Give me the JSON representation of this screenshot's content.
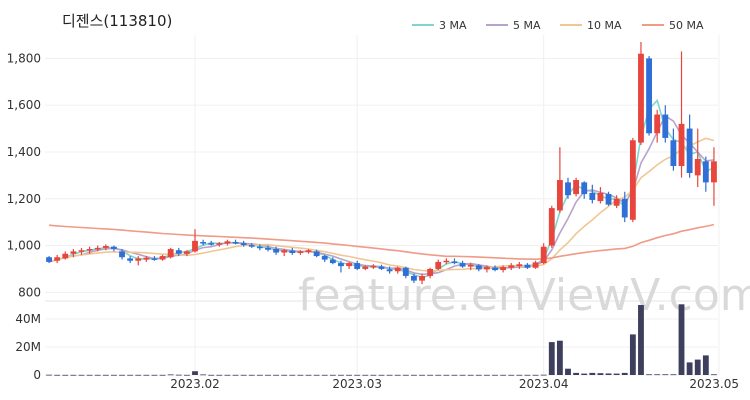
{
  "chart_data": {
    "type": "candlestick",
    "title": "디젠스(113810)",
    "watermark": "feature.enViewV.com",
    "x_labels": [
      "2023.02",
      "2023.03",
      "2023.04",
      "2023.05"
    ],
    "price_axis": {
      "ticks": [
        800,
        1000,
        1200,
        1400,
        1600,
        1800
      ],
      "tick_labels": [
        "800",
        "1,000",
        "1,200",
        "1,400",
        "1,600",
        "1,800"
      ],
      "ylim": [
        780,
        1900
      ]
    },
    "volume_axis": {
      "ticks": [
        0,
        20,
        40
      ],
      "tick_labels": [
        "0",
        "20M",
        "40M"
      ],
      "ylim": [
        0,
        50
      ],
      "unit": "M"
    },
    "legend": [
      {
        "name": "3 MA",
        "color": "#7fd6cf"
      },
      {
        "name": "5 MA",
        "color": "#b9a3cc"
      },
      {
        "name": "10 MA",
        "color": "#f0c792"
      },
      {
        "name": "50 MA",
        "color": "#ef9b86"
      }
    ],
    "colors": {
      "up": "#e8453c",
      "down": "#2f6fd6",
      "volume": "#3d3f5c",
      "grid": "#f0f0f0"
    },
    "candles": [
      [
        950,
        955,
        925,
        930
      ],
      [
        935,
        960,
        925,
        950
      ],
      [
        945,
        975,
        940,
        965
      ],
      [
        965,
        985,
        950,
        975
      ],
      [
        975,
        990,
        960,
        980
      ],
      [
        980,
        995,
        965,
        985
      ],
      [
        985,
        1000,
        975,
        990
      ],
      [
        990,
        1005,
        980,
        998
      ],
      [
        995,
        1000,
        975,
        985
      ],
      [
        975,
        985,
        940,
        950
      ],
      [
        945,
        955,
        925,
        935
      ],
      [
        935,
        955,
        915,
        945
      ],
      [
        940,
        955,
        930,
        948
      ],
      [
        945,
        955,
        935,
        940
      ],
      [
        940,
        960,
        935,
        955
      ],
      [
        950,
        990,
        945,
        985
      ],
      [
        980,
        990,
        955,
        965
      ],
      [
        965,
        980,
        955,
        975
      ],
      [
        975,
        1070,
        970,
        1020
      ],
      [
        1015,
        1025,
        1000,
        1010
      ],
      [
        1010,
        1020,
        1000,
        1005
      ],
      [
        1005,
        1015,
        995,
        1010
      ],
      [
        1008,
        1025,
        1000,
        1018
      ],
      [
        1015,
        1025,
        1005,
        1010
      ],
      [
        1010,
        1020,
        995,
        1002
      ],
      [
        1002,
        1010,
        990,
        995
      ],
      [
        995,
        1005,
        980,
        990
      ],
      [
        990,
        1000,
        975,
        982
      ],
      [
        985,
        995,
        960,
        970
      ],
      [
        970,
        985,
        955,
        980
      ],
      [
        978,
        990,
        960,
        968
      ],
      [
        968,
        980,
        960,
        975
      ],
      [
        972,
        985,
        965,
        980
      ],
      [
        975,
        982,
        950,
        955
      ],
      [
        955,
        960,
        930,
        940
      ],
      [
        940,
        950,
        920,
        925
      ],
      [
        925,
        935,
        885,
        912
      ],
      [
        912,
        930,
        900,
        925
      ],
      [
        925,
        935,
        895,
        900
      ],
      [
        900,
        915,
        895,
        910
      ],
      [
        910,
        920,
        900,
        913
      ],
      [
        910,
        918,
        895,
        900
      ],
      [
        898,
        910,
        880,
        890
      ],
      [
        890,
        910,
        880,
        905
      ],
      [
        905,
        910,
        860,
        870
      ],
      [
        870,
        880,
        840,
        850
      ],
      [
        850,
        880,
        835,
        870
      ],
      [
        870,
        905,
        860,
        900
      ],
      [
        900,
        940,
        895,
        930
      ],
      [
        930,
        945,
        920,
        935
      ],
      [
        932,
        945,
        920,
        925
      ],
      [
        925,
        935,
        905,
        910
      ],
      [
        910,
        925,
        895,
        918
      ],
      [
        915,
        920,
        890,
        898
      ],
      [
        898,
        915,
        885,
        908
      ],
      [
        906,
        915,
        890,
        895
      ],
      [
        895,
        915,
        885,
        908
      ],
      [
        905,
        925,
        895,
        915
      ],
      [
        912,
        930,
        900,
        920
      ],
      [
        918,
        925,
        900,
        905
      ],
      [
        905,
        935,
        900,
        928
      ],
      [
        925,
        1010,
        920,
        995
      ],
      [
        1000,
        1170,
        990,
        1160
      ],
      [
        1150,
        1420,
        1140,
        1280
      ],
      [
        1270,
        1290,
        1200,
        1215
      ],
      [
        1220,
        1290,
        1210,
        1280
      ],
      [
        1270,
        1275,
        1200,
        1220
      ],
      [
        1225,
        1260,
        1180,
        1195
      ],
      [
        1190,
        1250,
        1180,
        1225
      ],
      [
        1220,
        1230,
        1170,
        1175
      ],
      [
        1170,
        1215,
        1160,
        1200
      ],
      [
        1200,
        1230,
        1100,
        1120
      ],
      [
        1110,
        1460,
        1100,
        1450
      ],
      [
        1440,
        1870,
        1430,
        1820
      ],
      [
        1800,
        1810,
        1470,
        1480
      ],
      [
        1480,
        1580,
        1440,
        1560
      ],
      [
        1560,
        1600,
        1440,
        1460
      ],
      [
        1450,
        1500,
        1320,
        1340
      ],
      [
        1340,
        1830,
        1290,
        1520
      ],
      [
        1500,
        1560,
        1290,
        1310
      ],
      [
        1300,
        1500,
        1250,
        1370
      ],
      [
        1360,
        1380,
        1230,
        1270
      ],
      [
        1270,
        1420,
        1170,
        1360
      ]
    ],
    "volume": [
      0.2,
      0.1,
      0.1,
      0.1,
      0.1,
      0.1,
      0.1,
      0.1,
      0.1,
      0.1,
      0.1,
      0.1,
      0.1,
      0.1,
      0.1,
      0.4,
      0.2,
      0.1,
      2.7,
      0.4,
      0.1,
      0.1,
      0.1,
      0.1,
      0.1,
      0.1,
      0.1,
      0.1,
      0.1,
      0.1,
      0.1,
      0.1,
      0.1,
      0.1,
      0.1,
      0.1,
      0.1,
      0.1,
      0.1,
      0.1,
      0.1,
      0.1,
      0.1,
      0.1,
      0.1,
      0.1,
      0.1,
      0.1,
      0.1,
      0.1,
      0.1,
      0.1,
      0.1,
      0.1,
      0.1,
      0.1,
      0.1,
      0.1,
      0.1,
      0.1,
      0.1,
      0.2,
      23.5,
      24.5,
      4.5,
      1.5,
      1.0,
      1.5,
      1.3,
      1.1,
      1.0,
      1.5,
      29.0,
      50.0,
      0.5,
      0.5,
      0.5,
      0.5,
      50.5,
      9.0,
      11.0,
      14.0,
      0.5
    ]
  }
}
